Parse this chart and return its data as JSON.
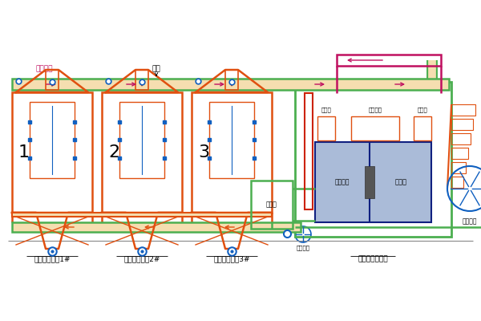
{
  "bg_color": "#ffffff",
  "or": "#E05010",
  "gr": "#4CAF50",
  "rd": "#CC2200",
  "bl": "#1060C0",
  "dbl": "#102080",
  "mg": "#C01060",
  "pu": "#8030A0",
  "lo": "#F5DEB0",
  "label_tower1": "活性炭吸附塔1#",
  "label_tower2": "活性炭吸附塔2#",
  "label_tower3": "活性炭吸附塔3#",
  "label_cat": "催化燃烧净化塔",
  "label_airflow": "气流方向",
  "label_pipe": "管道",
  "label_heatex": "热交換器",
  "label_oilbaffle": "油挙片",
  "label_oilfan": "油幕风",
  "label_mixbox": "混流笱",
  "label_heatzone": "加热区",
  "label_catburn": "催化燃烧",
  "label_coolfan": "补冷风机",
  "label_sidefan": "脱附风机"
}
